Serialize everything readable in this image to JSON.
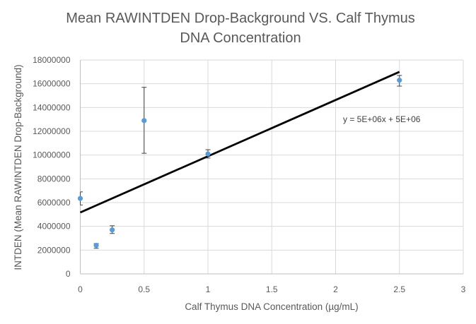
{
  "chart_data": {
    "type": "scatter",
    "title": [
      "Mean RAWINTDEN Drop-Background VS. Calf Thymus",
      "DNA Concentration"
    ],
    "xlabel": "Calf Thymus DNA Concentration (µg/mL)",
    "ylabel": "INTDEN (Mean RAWINTDEN Drop-Background)",
    "xlim": [
      0,
      3
    ],
    "ylim": [
      0,
      18000000
    ],
    "x_ticks": [
      0,
      0.5,
      1,
      1.5,
      2,
      2.5,
      3
    ],
    "x_tick_labels": [
      "0",
      "0.5",
      "1",
      "1.5",
      "2",
      "2.5",
      "3"
    ],
    "y_ticks": [
      0,
      2000000,
      4000000,
      6000000,
      8000000,
      10000000,
      12000000,
      14000000,
      16000000,
      18000000
    ],
    "y_tick_labels": [
      "0",
      "2000000",
      "4000000",
      "6000000",
      "8000000",
      "10000000",
      "12000000",
      "14000000",
      "16000000",
      "18000000"
    ],
    "grid": true,
    "series": [
      {
        "name": "Mean RAWINTDEN Drop-Background",
        "color": "#5b9bd5",
        "x": [
          0,
          0.125,
          0.25,
          0.5,
          1,
          2.5
        ],
        "y": [
          6350000,
          2400000,
          3700000,
          12900000,
          10100000,
          16300000
        ],
        "error_low": [
          5800000,
          2150000,
          3400000,
          10150000,
          9750000,
          15800000
        ],
        "error_high": [
          6900000,
          2550000,
          4050000,
          15700000,
          10450000,
          16700000
        ]
      }
    ],
    "trendline": {
      "equation": "y = 5E+06x + 5E+06",
      "x": [
        0,
        2.5
      ],
      "y": [
        5170000,
        17000000
      ],
      "color": "#000000"
    }
  }
}
